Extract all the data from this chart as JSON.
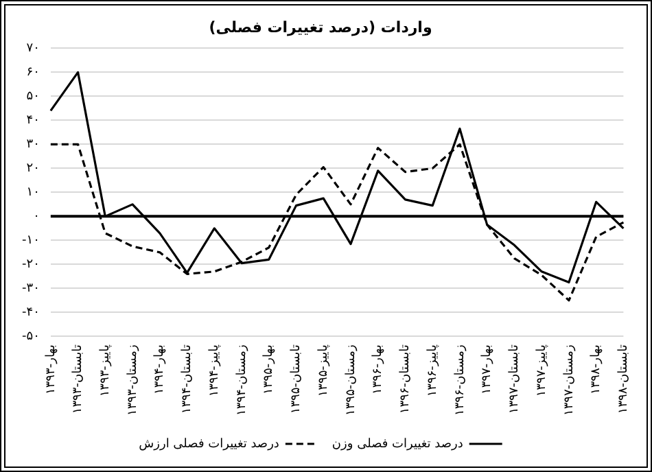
{
  "chart_data": {
    "type": "line",
    "title": "واردات (درصد تغییرات فصلی)",
    "categories": [
      "۱۳۹۳-بهار",
      "۱۳۹۳-تابستان",
      "۱۳۹۳-پاییز",
      "۱۳۹۳-زمستان",
      "۱۳۹۴-بهار",
      "۱۳۹۴-تابستان",
      "۱۳۹۴-پاییز",
      "۱۳۹۴-زمستان",
      "۱۳۹۵-بهار",
      "۱۳۹۵-تابستان",
      "۱۳۹۵-پاییز",
      "۱۳۹۵-زمستان",
      "۱۳۹۶-بهار",
      "۱۳۹۶-تابستان",
      "۱۳۹۶-پاییز",
      "۱۳۹۶-زمستان",
      "۱۳۹۷-بهار",
      "۱۳۹۷-تابستان",
      "۱۳۹۷-پاییز",
      "۱۳۹۷-زمستان",
      "۱۳۹۸-بهار",
      "۱۳۹۸-تابستان"
    ],
    "series": [
      {
        "name": "درصد تغییرات فصلی وزن",
        "color": "#000000",
        "line_style": "solid",
        "values": [
          44,
          60,
          0,
          5,
          -7,
          -23.5,
          -5,
          -19.5,
          -18,
          4.5,
          7.5,
          -11.5,
          19,
          7,
          4.5,
          36.5,
          -3.5,
          -12,
          -23,
          -27.5,
          6,
          -5
        ]
      },
      {
        "name": "درصد تغییرات فصلی ارزش",
        "color": "#000000",
        "line_style": "dashed",
        "values": [
          30,
          30,
          -7,
          -12.5,
          -15,
          -24,
          -23,
          -19,
          -13,
          9,
          20.5,
          5,
          28.5,
          18.5,
          20,
          30,
          -3.5,
          -17.5,
          -24.5,
          -35,
          -8.5,
          -2.5
        ]
      }
    ],
    "ylim": [
      -50,
      70
    ],
    "yticks": [
      {
        "value": -50,
        "label": "-۵۰"
      },
      {
        "value": -40,
        "label": "-۴۰"
      },
      {
        "value": -30,
        "label": "-۳۰"
      },
      {
        "value": -20,
        "label": "-۲۰"
      },
      {
        "value": -10,
        "label": "-۱۰"
      },
      {
        "value": 0,
        "label": "۰"
      },
      {
        "value": 10,
        "label": "۱۰"
      },
      {
        "value": 20,
        "label": "۲۰"
      },
      {
        "value": 30,
        "label": "۳۰"
      },
      {
        "value": 40,
        "label": "۴۰"
      },
      {
        "value": 50,
        "label": "۵۰"
      },
      {
        "value": 60,
        "label": "۶۰"
      },
      {
        "value": 70,
        "label": "۷۰"
      }
    ],
    "grid": "y",
    "legend": "bottom",
    "marker": "none",
    "ref_lines": [
      {
        "axis": "y",
        "value": 0,
        "color": "#000000"
      }
    ]
  }
}
